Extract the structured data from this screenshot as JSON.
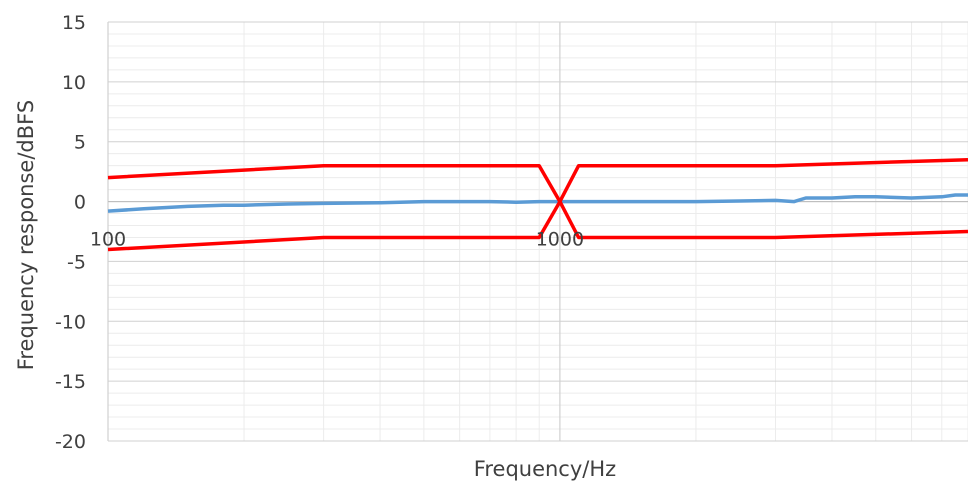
{
  "chart_data": {
    "type": "line",
    "title": "",
    "xlabel": "Frequency/Hz",
    "ylabel": "Frequency response/dBFS",
    "x_scale": "log",
    "xlim": [
      100,
      8000
    ],
    "ylim": [
      -20,
      15
    ],
    "y_ticks": [
      15,
      10,
      5,
      0,
      -5,
      -10,
      -15,
      -20
    ],
    "x_ticks": [
      {
        "value": 100,
        "label": "100"
      },
      {
        "value": 1000,
        "label": "1000"
      }
    ],
    "grid": true,
    "colors": {
      "measured": "#5b9bd5",
      "limits": "#ff0000",
      "grid_major": "#d0d0d0",
      "grid_minor": "#ececec"
    },
    "series": [
      {
        "role": "measured",
        "x": [
          100,
          120,
          150,
          180,
          200,
          250,
          300,
          400,
          500,
          600,
          700,
          800,
          900,
          1000,
          1200,
          1500,
          1800,
          2000,
          2500,
          3000,
          3300,
          3500,
          4000,
          4500,
          5000,
          6000,
          7000,
          7500,
          8000
        ],
        "y": [
          -0.8,
          -0.6,
          -0.4,
          -0.3,
          -0.3,
          -0.2,
          -0.15,
          -0.1,
          0.0,
          0.0,
          0.0,
          -0.05,
          0.0,
          0.0,
          0.0,
          0.0,
          0.0,
          0.0,
          0.05,
          0.1,
          0.0,
          0.3,
          0.3,
          0.4,
          0.4,
          0.3,
          0.4,
          0.55,
          0.55
        ]
      },
      {
        "role": "upper-limit",
        "x": [
          100,
          300,
          900,
          1000,
          1100,
          3000,
          8000
        ],
        "y": [
          2,
          3,
          3,
          0,
          3,
          3,
          3.5
        ]
      },
      {
        "role": "lower-limit",
        "x": [
          100,
          300,
          900,
          1000,
          1100,
          3000,
          8000
        ],
        "y": [
          -4,
          -3,
          -3,
          0,
          -3,
          -3,
          -2.5
        ]
      }
    ]
  }
}
